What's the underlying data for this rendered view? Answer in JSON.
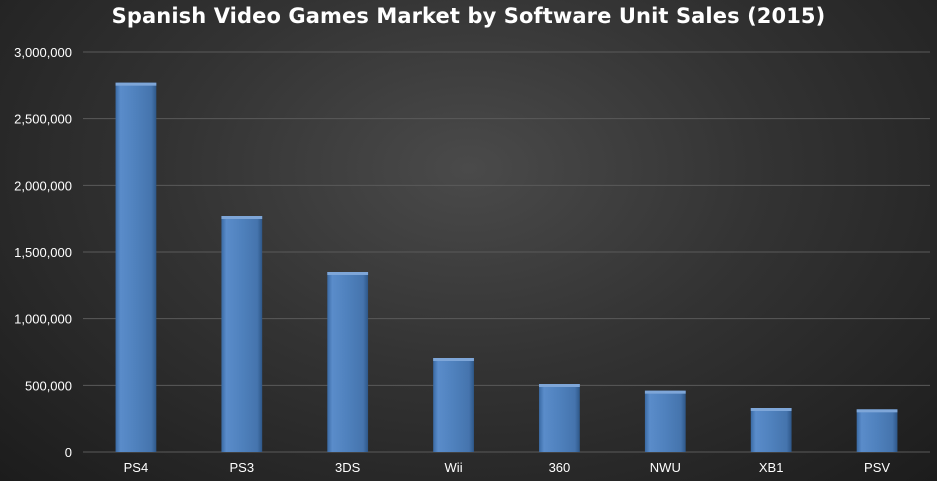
{
  "chart_data": {
    "type": "bar",
    "title": "Spanish Video Games Market by Software Unit Sales (2015)",
    "xlabel": "",
    "ylabel": "",
    "categories": [
      "PS4",
      "PS3",
      "3DS",
      "Wii",
      "360",
      "NWU",
      "XB1",
      "PSV"
    ],
    "values": [
      2770000,
      1770000,
      1350000,
      705000,
      510000,
      460000,
      330000,
      320000
    ],
    "ylim": [
      0,
      3000000
    ],
    "yticks": [
      0,
      500000,
      1000000,
      1500000,
      2000000,
      2500000,
      3000000
    ],
    "ytick_labels": [
      "0",
      "500,000",
      "1,000,000",
      "1,500,000",
      "2,000,000",
      "2,500,000",
      "3,000,000"
    ],
    "grid": true,
    "legend": "none",
    "colors": {
      "bar": "#4f81bd",
      "bar_light": "#7ea6d8",
      "bar_dark": "#345f94",
      "grid": "#5a5a5a",
      "text": "#ffffff"
    }
  }
}
